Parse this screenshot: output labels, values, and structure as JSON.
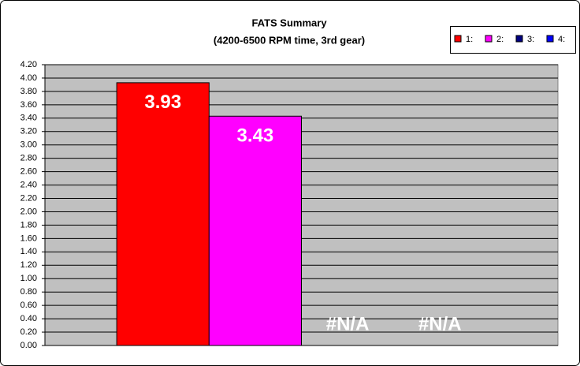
{
  "chart_data": {
    "type": "bar",
    "title": "FATS Summary",
    "subtitle": "(4200-6500 RPM time, 3rd gear)",
    "categories": [
      null
    ],
    "series": [
      {
        "name": "1:",
        "color": "#ff0000",
        "values": [
          3.93
        ],
        "value_labels": [
          "3.93"
        ]
      },
      {
        "name": "2:",
        "color": "#ff00ff",
        "values": [
          3.43
        ],
        "value_labels": [
          "3.43"
        ]
      },
      {
        "name": "3:",
        "color": "#000080",
        "values": [
          null
        ],
        "value_labels": [
          "#N/A"
        ]
      },
      {
        "name": "4:",
        "color": "#0000ff",
        "values": [
          null
        ],
        "value_labels": [
          "#N/A"
        ]
      }
    ],
    "ylim": [
      0,
      4.2
    ],
    "yticks": [
      {
        "value": 0,
        "label": "0.00"
      },
      {
        "value": 0.2,
        "label": "0.20"
      },
      {
        "value": 0.4,
        "label": "0.40"
      },
      {
        "value": 0.6,
        "label": "0.60"
      },
      {
        "value": 0.8,
        "label": "0.80"
      },
      {
        "value": 1,
        "label": "1.00"
      },
      {
        "value": 1.2,
        "label": "1.20"
      },
      {
        "value": 1.4,
        "label": "1.40"
      },
      {
        "value": 1.6,
        "label": "1.60"
      },
      {
        "value": 1.8,
        "label": "1.80"
      },
      {
        "value": 2,
        "label": "2.00"
      },
      {
        "value": 2.2,
        "label": "2.20"
      },
      {
        "value": 2.4,
        "label": "2.40"
      },
      {
        "value": 2.6,
        "label": "2.60"
      },
      {
        "value": 2.8,
        "label": "2.80"
      },
      {
        "value": 3,
        "label": "3.00"
      },
      {
        "value": 3.2,
        "label": "3.20"
      },
      {
        "value": 3.4,
        "label": "3.40"
      },
      {
        "value": 3.6,
        "label": "3.60"
      },
      {
        "value": 3.8,
        "label": "3.80"
      },
      {
        "value": 4,
        "label": "4.00"
      },
      {
        "value": 4.2,
        "label": "4.20"
      }
    ],
    "grid": true,
    "legend": "top-right",
    "plot_background": "#c0c0c0"
  }
}
